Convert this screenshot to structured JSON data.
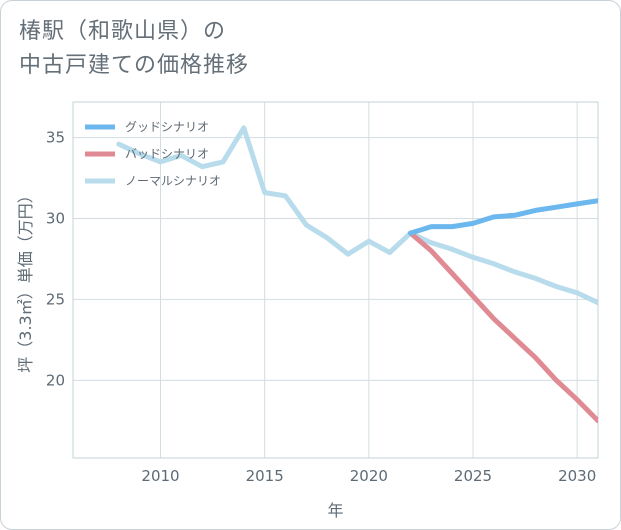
{
  "title": {
    "line1": "椿駅（和歌山県）の",
    "line2": "中古戸建ての価格推移"
  },
  "chart_data": {
    "type": "line",
    "xlabel": "年",
    "ylabel": "坪（3.3㎡）単価（万円）",
    "xlim": [
      2005.8,
      2031
    ],
    "ylim": [
      15.2,
      37.2
    ],
    "x_ticks": [
      2010,
      2015,
      2020,
      2025,
      2030
    ],
    "y_ticks": [
      20,
      25,
      30,
      35
    ],
    "grid": true,
    "legend_position": "top-left",
    "series": [
      {
        "name": "グッドシナリオ",
        "color": "#6cb8ee",
        "x": [
          2022,
          2023,
          2024,
          2025,
          2026,
          2027,
          2028,
          2029,
          2030,
          2031
        ],
        "values": [
          29.1,
          29.5,
          29.5,
          29.7,
          30.1,
          30.2,
          30.5,
          30.7,
          30.9,
          31.1
        ]
      },
      {
        "name": "バッドシナリオ",
        "color": "#e08a93",
        "x": [
          2022,
          2023,
          2024,
          2025,
          2026,
          2027,
          2028,
          2029,
          2030,
          2031
        ],
        "values": [
          29.1,
          28.0,
          26.6,
          25.2,
          23.8,
          22.6,
          21.4,
          20.0,
          18.8,
          17.5
        ]
      },
      {
        "name": "ノーマルシナリオ",
        "color": "#b8dcec",
        "x": [
          2008,
          2009,
          2010,
          2011,
          2012,
          2013,
          2014,
          2015,
          2016,
          2017,
          2018,
          2019,
          2020,
          2021,
          2022,
          2023,
          2024,
          2025,
          2026,
          2027,
          2028,
          2029,
          2030,
          2031
        ],
        "values": [
          34.6,
          34.0,
          33.5,
          33.9,
          33.2,
          33.5,
          35.6,
          31.6,
          31.4,
          29.6,
          28.8,
          27.8,
          28.6,
          27.9,
          29.1,
          28.5,
          28.1,
          27.6,
          27.2,
          26.7,
          26.3,
          25.8,
          25.4,
          24.8
        ]
      }
    ]
  }
}
